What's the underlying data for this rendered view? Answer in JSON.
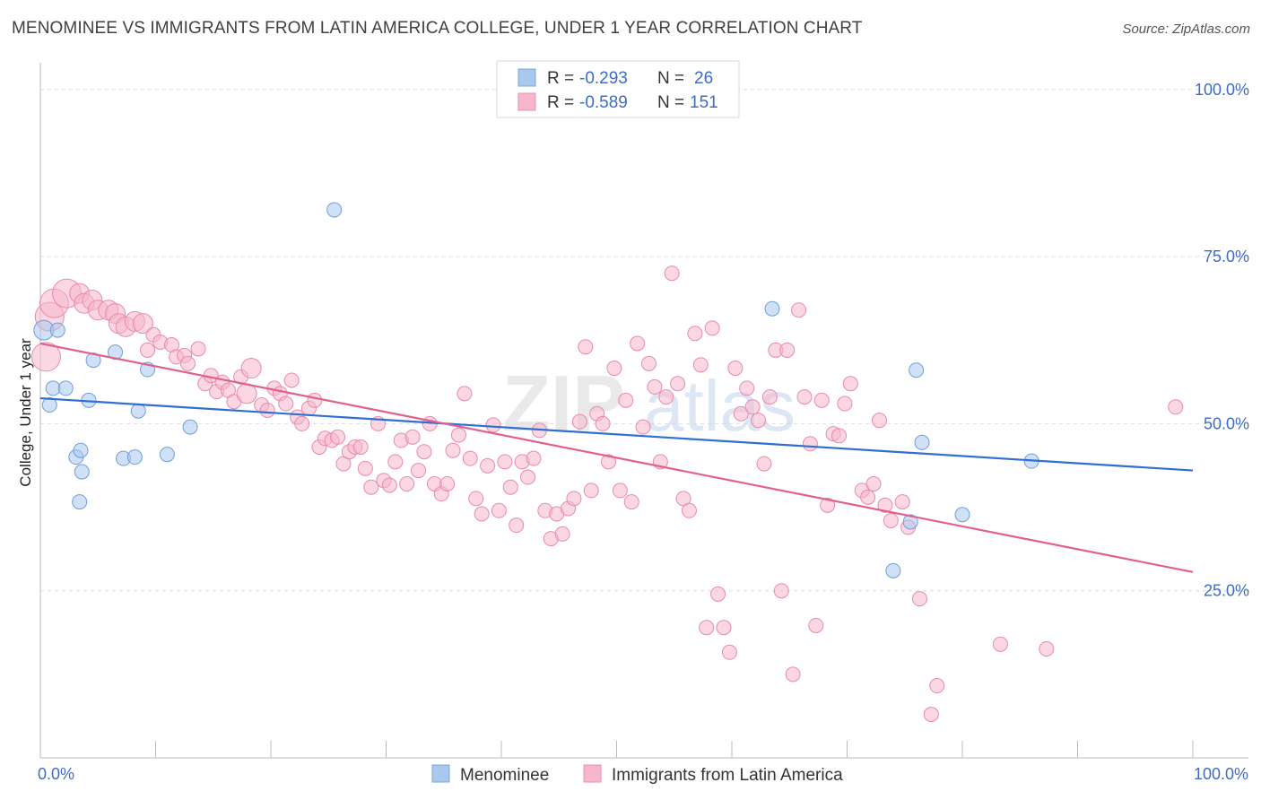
{
  "title": "MENOMINEE VS IMMIGRANTS FROM LATIN AMERICA COLLEGE, UNDER 1 YEAR CORRELATION CHART",
  "source": "Source: ZipAtlas.com",
  "watermark": "ZIPatlas",
  "colors": {
    "blue_fill": "#a9c8ee",
    "blue_line": "#2f6fd1",
    "pink_fill": "#f6b7cc",
    "pink_line": "#e0608e",
    "axis_text": "#3d6cc7",
    "grid": "#dcdcdc"
  },
  "legend": {
    "rows": [
      {
        "r_label": "R =",
        "r_value": "-0.293",
        "n_label": "N =",
        "n_value": "26"
      },
      {
        "r_label": "R =",
        "r_value": "-0.589",
        "n_label": "N =",
        "n_value": "151"
      }
    ]
  },
  "chart_data": {
    "type": "scatter",
    "title": "MENOMINEE VS IMMIGRANTS FROM LATIN AMERICA COLLEGE, UNDER 1 YEAR CORRELATION CHART",
    "xlabel": "",
    "ylabel": "College, Under 1 year",
    "xlim": [
      0,
      100
    ],
    "ylim": [
      0,
      104
    ],
    "x_tick_labels": [
      "0.0%",
      "100.0%"
    ],
    "y_ticks": [
      25,
      50,
      75,
      100
    ],
    "y_tick_labels": [
      "25.0%",
      "50.0%",
      "75.0%",
      "100.0%"
    ],
    "grid": true,
    "series": [
      {
        "name": "Menominee",
        "color": "#a9c8ee",
        "trend": {
          "x": [
            0,
            100
          ],
          "y": [
            53.8,
            43.0
          ]
        },
        "points": [
          [
            0.3,
            64.0,
            2
          ],
          [
            0.8,
            52.8,
            1
          ],
          [
            1.5,
            64.0,
            1
          ],
          [
            1.1,
            55.3,
            1
          ],
          [
            2.2,
            55.3,
            1
          ],
          [
            3.1,
            45.0,
            1
          ],
          [
            3.4,
            38.3,
            1
          ],
          [
            3.5,
            46.0,
            1
          ],
          [
            3.6,
            42.8,
            1
          ],
          [
            4.2,
            53.5,
            1
          ],
          [
            4.6,
            59.5,
            1
          ],
          [
            6.5,
            60.7,
            1
          ],
          [
            7.2,
            44.8,
            1
          ],
          [
            8.2,
            45.0,
            1
          ],
          [
            8.5,
            51.9,
            1
          ],
          [
            9.3,
            58.1,
            1
          ],
          [
            11.0,
            45.4,
            1
          ],
          [
            13.0,
            49.5,
            1
          ],
          [
            25.5,
            82.0,
            1
          ],
          [
            63.5,
            67.2,
            1
          ],
          [
            74.0,
            28.0,
            1
          ],
          [
            75.5,
            35.3,
            1
          ],
          [
            76.0,
            58.0,
            1
          ],
          [
            76.5,
            47.2,
            1
          ],
          [
            80.0,
            36.4,
            1
          ],
          [
            86.0,
            44.4,
            1
          ]
        ]
      },
      {
        "name": "Immigrants from Latin America",
        "color": "#f6b7cc",
        "trend": {
          "x": [
            0,
            100
          ],
          "y": [
            62.0,
            27.8
          ]
        },
        "points": [
          [
            0.5,
            60.0,
            3
          ],
          [
            0.8,
            66.0,
            3
          ],
          [
            1.2,
            68.0,
            3
          ],
          [
            2.3,
            69.5,
            3
          ],
          [
            3.4,
            69.5,
            2
          ],
          [
            3.8,
            68.0,
            2
          ],
          [
            4.5,
            68.5,
            2
          ],
          [
            5.0,
            67.0,
            2
          ],
          [
            5.9,
            67.0,
            2
          ],
          [
            6.5,
            66.5,
            2
          ],
          [
            6.8,
            65.0,
            2
          ],
          [
            7.4,
            64.5,
            2
          ],
          [
            8.2,
            65.3,
            2
          ],
          [
            8.9,
            65.0,
            2
          ],
          [
            9.3,
            61.0,
            1
          ],
          [
            9.8,
            63.3,
            1
          ],
          [
            10.4,
            62.2,
            1
          ],
          [
            11.4,
            61.8,
            1
          ],
          [
            11.8,
            60.0,
            1
          ],
          [
            12.5,
            60.2,
            1
          ],
          [
            12.8,
            59.0,
            1
          ],
          [
            13.7,
            61.2,
            1
          ],
          [
            14.3,
            56.0,
            1
          ],
          [
            14.8,
            57.2,
            1
          ],
          [
            15.3,
            54.8,
            1
          ],
          [
            15.8,
            56.2,
            1
          ],
          [
            16.3,
            55.0,
            1
          ],
          [
            16.8,
            53.3,
            1
          ],
          [
            17.4,
            57.0,
            1
          ],
          [
            17.9,
            54.5,
            2
          ],
          [
            18.3,
            58.3,
            2
          ],
          [
            19.2,
            52.8,
            1
          ],
          [
            19.7,
            52.0,
            1
          ],
          [
            20.3,
            55.3,
            1
          ],
          [
            20.8,
            54.5,
            1
          ],
          [
            21.3,
            53.0,
            1
          ],
          [
            21.8,
            56.5,
            1
          ],
          [
            22.3,
            51.0,
            1
          ],
          [
            22.7,
            50.0,
            1
          ],
          [
            23.3,
            52.3,
            1
          ],
          [
            23.8,
            53.5,
            1
          ],
          [
            24.2,
            46.5,
            1
          ],
          [
            24.7,
            47.8,
            1
          ],
          [
            25.3,
            47.5,
            1
          ],
          [
            25.8,
            48.0,
            1
          ],
          [
            26.3,
            44.0,
            1
          ],
          [
            26.8,
            45.8,
            1
          ],
          [
            27.3,
            46.5,
            1
          ],
          [
            27.8,
            46.5,
            1
          ],
          [
            28.2,
            43.3,
            1
          ],
          [
            28.7,
            40.5,
            1
          ],
          [
            29.3,
            50.0,
            1
          ],
          [
            29.8,
            41.5,
            1
          ],
          [
            30.3,
            40.8,
            1
          ],
          [
            30.8,
            44.3,
            1
          ],
          [
            31.3,
            47.5,
            1
          ],
          [
            31.8,
            41.0,
            1
          ],
          [
            32.3,
            48.0,
            1
          ],
          [
            32.8,
            43.0,
            1
          ],
          [
            33.3,
            45.8,
            1
          ],
          [
            33.8,
            50.0,
            1
          ],
          [
            34.2,
            41.0,
            1
          ],
          [
            34.8,
            39.5,
            1
          ],
          [
            35.3,
            41.0,
            1
          ],
          [
            35.8,
            46.0,
            1
          ],
          [
            36.3,
            48.3,
            1
          ],
          [
            36.8,
            54.5,
            1
          ],
          [
            37.3,
            44.8,
            1
          ],
          [
            37.8,
            38.8,
            1
          ],
          [
            38.3,
            36.5,
            1
          ],
          [
            38.8,
            43.7,
            1
          ],
          [
            39.3,
            49.8,
            1
          ],
          [
            39.8,
            37.0,
            1
          ],
          [
            40.3,
            44.3,
            1
          ],
          [
            40.8,
            40.5,
            1
          ],
          [
            41.3,
            34.8,
            1
          ],
          [
            41.8,
            44.3,
            1
          ],
          [
            42.3,
            42.0,
            1
          ],
          [
            42.8,
            44.8,
            1
          ],
          [
            43.3,
            49.0,
            1
          ],
          [
            43.8,
            37.0,
            1
          ],
          [
            44.3,
            32.8,
            1
          ],
          [
            44.8,
            36.5,
            1
          ],
          [
            45.3,
            33.5,
            1
          ],
          [
            45.8,
            37.3,
            1
          ],
          [
            46.3,
            38.8,
            1
          ],
          [
            46.8,
            50.3,
            1
          ],
          [
            47.3,
            61.5,
            1
          ],
          [
            47.8,
            40.0,
            1
          ],
          [
            48.3,
            51.5,
            1
          ],
          [
            48.8,
            50.0,
            1
          ],
          [
            49.3,
            44.3,
            1
          ],
          [
            49.8,
            58.3,
            1
          ],
          [
            50.3,
            40.0,
            1
          ],
          [
            50.8,
            53.5,
            1
          ],
          [
            51.3,
            38.3,
            1
          ],
          [
            51.8,
            62.0,
            1
          ],
          [
            52.3,
            49.5,
            1
          ],
          [
            52.8,
            59.0,
            1
          ],
          [
            53.3,
            55.5,
            1
          ],
          [
            53.8,
            44.3,
            1
          ],
          [
            54.3,
            54.0,
            1
          ],
          [
            54.8,
            72.5,
            1
          ],
          [
            55.3,
            56.0,
            1
          ],
          [
            55.8,
            38.8,
            1
          ],
          [
            56.3,
            37.0,
            1
          ],
          [
            56.8,
            63.5,
            1
          ],
          [
            57.3,
            58.8,
            1
          ],
          [
            57.8,
            19.5,
            1
          ],
          [
            58.3,
            64.3,
            1
          ],
          [
            58.8,
            24.5,
            1
          ],
          [
            59.3,
            19.5,
            1
          ],
          [
            59.8,
            15.8,
            1
          ],
          [
            60.3,
            58.3,
            1
          ],
          [
            60.8,
            51.5,
            1
          ],
          [
            61.3,
            55.3,
            1
          ],
          [
            61.8,
            52.5,
            1
          ],
          [
            62.3,
            50.5,
            1
          ],
          [
            62.8,
            44.0,
            1
          ],
          [
            63.3,
            54.0,
            1
          ],
          [
            63.8,
            61.0,
            1
          ],
          [
            64.3,
            25.0,
            1
          ],
          [
            64.8,
            61.0,
            1
          ],
          [
            65.3,
            12.5,
            1
          ],
          [
            65.8,
            67.0,
            1
          ],
          [
            66.3,
            54.0,
            1
          ],
          [
            66.8,
            47.0,
            1
          ],
          [
            67.3,
            19.8,
            1
          ],
          [
            67.8,
            53.5,
            1
          ],
          [
            68.3,
            37.8,
            1
          ],
          [
            68.8,
            48.5,
            1
          ],
          [
            69.3,
            48.2,
            1
          ],
          [
            69.8,
            53.0,
            1
          ],
          [
            70.3,
            56.0,
            1
          ],
          [
            71.3,
            40.0,
            1
          ],
          [
            71.8,
            39.0,
            1
          ],
          [
            72.3,
            41.0,
            1
          ],
          [
            72.8,
            50.5,
            1
          ],
          [
            73.3,
            37.8,
            1
          ],
          [
            73.8,
            35.5,
            1
          ],
          [
            74.8,
            38.3,
            1
          ],
          [
            75.3,
            34.5,
            1
          ],
          [
            76.3,
            23.8,
            1
          ],
          [
            77.3,
            6.5,
            1
          ],
          [
            77.8,
            10.8,
            1
          ],
          [
            83.3,
            17.0,
            1
          ],
          [
            87.3,
            16.3,
            1
          ],
          [
            98.5,
            52.5,
            1
          ]
        ]
      }
    ]
  },
  "bottom_legend": {
    "items": [
      "Menominee",
      "Immigrants from Latin America"
    ]
  }
}
